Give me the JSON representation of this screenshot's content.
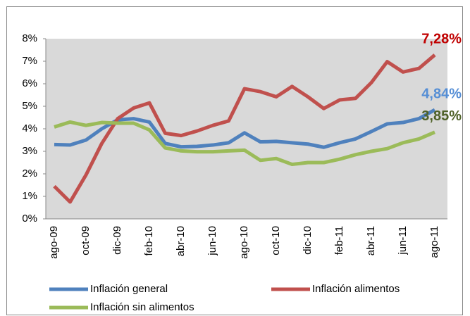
{
  "chart_data": {
    "type": "line",
    "categories": [
      "ago-09",
      null,
      "oct-09",
      null,
      "dic-09",
      null,
      "feb-10",
      null,
      "abr-10",
      null,
      "jun-10",
      null,
      "ago-10",
      null,
      "oct-10",
      null,
      "dic-10",
      null,
      "feb-11",
      null,
      "abr-11",
      null,
      "jun-11",
      null,
      "ago-11"
    ],
    "series": [
      {
        "name": "Inflación general",
        "color": "#4f81bd",
        "label_color": "#558ed5",
        "values": [
          3.3,
          3.28,
          3.5,
          4.0,
          4.4,
          4.45,
          4.3,
          3.35,
          3.2,
          3.22,
          3.28,
          3.38,
          3.82,
          3.42,
          3.44,
          3.38,
          3.32,
          3.18,
          3.38,
          3.55,
          3.88,
          4.22,
          4.28,
          4.45,
          4.84
        ],
        "value_labels": [
          null,
          null,
          null,
          null,
          null,
          null,
          null,
          null,
          null,
          null,
          null,
          null,
          null,
          null,
          null,
          null,
          null,
          null,
          null,
          null,
          null,
          null,
          null,
          null,
          "4,84%"
        ]
      },
      {
        "name": "Inflación alimentos",
        "color": "#c0504d",
        "label_color": "#c00000",
        "values": [
          1.45,
          0.75,
          1.95,
          3.35,
          4.45,
          4.92,
          5.15,
          3.8,
          3.7,
          3.9,
          4.15,
          4.35,
          5.78,
          5.65,
          5.42,
          5.88,
          5.42,
          4.9,
          5.28,
          5.35,
          6.05,
          6.98,
          6.52,
          6.68,
          7.28
        ],
        "value_labels": [
          null,
          null,
          null,
          null,
          null,
          null,
          null,
          null,
          null,
          null,
          null,
          null,
          null,
          null,
          null,
          null,
          null,
          null,
          null,
          null,
          null,
          null,
          null,
          null,
          "7,28%"
        ]
      },
      {
        "name": "Inflación sin alimentos",
        "color": "#9bbb59",
        "label_color": "#4f6228",
        "values": [
          4.08,
          4.3,
          4.15,
          4.28,
          4.25,
          4.25,
          3.95,
          3.15,
          3.02,
          2.98,
          2.98,
          3.02,
          3.05,
          2.6,
          2.68,
          2.42,
          2.5,
          2.5,
          2.65,
          2.85,
          3.0,
          3.12,
          3.38,
          3.55,
          3.85
        ],
        "value_labels": [
          null,
          null,
          null,
          null,
          null,
          null,
          null,
          null,
          null,
          null,
          null,
          null,
          null,
          null,
          null,
          null,
          null,
          null,
          null,
          null,
          null,
          null,
          null,
          null,
          "3,85%"
        ]
      }
    ],
    "ylim": [
      0,
      8
    ],
    "yticks": [
      {
        "value": 0,
        "label": "0%"
      },
      {
        "value": 1,
        "label": "1%"
      },
      {
        "value": 2,
        "label": "2%"
      },
      {
        "value": 3,
        "label": "3%"
      },
      {
        "value": 4,
        "label": "4%"
      },
      {
        "value": 5,
        "label": "5%"
      },
      {
        "value": 6,
        "label": "6%"
      },
      {
        "value": 7,
        "label": "7%"
      },
      {
        "value": 8,
        "label": "8%"
      }
    ],
    "grid": false,
    "legend": "bottom"
  }
}
